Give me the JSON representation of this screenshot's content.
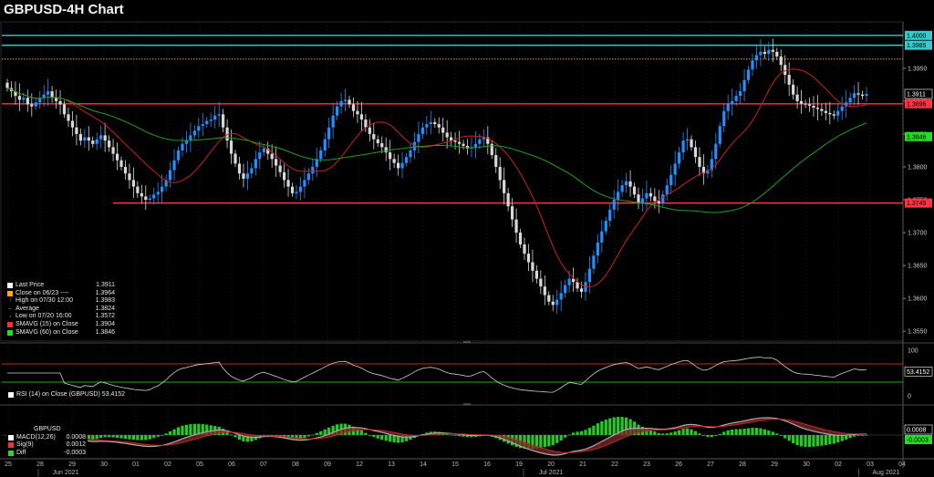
{
  "title": "GBPUSD-4H Chart",
  "colors": {
    "bull": "#1e90ff",
    "bear": "#d8d8d8",
    "sma15": "#cc2020",
    "sma60": "#20a020",
    "cyan": "#33cccc",
    "support": "#ff3344",
    "dotted": "#ccaa33",
    "rsi": "#d0d0d0"
  },
  "chart_data": [
    {
      "type": "candlestick",
      "title": "GBPUSD-4H Chart",
      "y_ticks": [
        "1.3950",
        "1.3900",
        "1.3850",
        "1.3800",
        "1.3750",
        "1.3700",
        "1.3650",
        "1.3600",
        "1.3550"
      ],
      "ylim": [
        1.3535,
        1.4015
      ],
      "x_tick_labels": [
        "25",
        "28",
        "29",
        "30",
        "01",
        "02",
        "05",
        "06",
        "07",
        "08",
        "09",
        "12",
        "13",
        "14",
        "15",
        "16",
        "19",
        "20",
        "21",
        "22",
        "23",
        "26",
        "27",
        "28",
        "29",
        "30",
        "02",
        "03",
        "04"
      ],
      "x_month_labels": [
        "Jun 2021",
        "Jul 2021",
        "Aug 2021"
      ],
      "close_series": [
        1.392,
        1.3915,
        1.3908,
        1.3902,
        1.3905,
        1.3895,
        1.3892,
        1.3898,
        1.3905,
        1.391,
        1.3915,
        1.3905,
        1.39,
        1.3895,
        1.388,
        1.387,
        1.386,
        1.385,
        1.384,
        1.3845,
        1.384,
        1.3835,
        1.3842,
        1.3848,
        1.384,
        1.383,
        1.382,
        1.381,
        1.38,
        1.379,
        1.378,
        1.377,
        1.376,
        1.3755,
        1.375,
        1.3752,
        1.3758,
        1.3762,
        1.377,
        1.378,
        1.3795,
        1.381,
        1.3825,
        1.3835,
        1.384,
        1.3848,
        1.3855,
        1.3862,
        1.3865,
        1.387,
        1.3872,
        1.3878,
        1.388,
        1.386,
        1.384,
        1.382,
        1.3805,
        1.379,
        1.3782,
        1.379,
        1.3798,
        1.3812,
        1.3822,
        1.3828,
        1.382,
        1.3812,
        1.3802,
        1.3792,
        1.378,
        1.377,
        1.376,
        1.3762,
        1.377,
        1.378,
        1.379,
        1.38,
        1.3812,
        1.3825,
        1.3842,
        1.386,
        1.3878,
        1.3892,
        1.39,
        1.3902,
        1.3895,
        1.3885,
        1.388,
        1.3872,
        1.386,
        1.385,
        1.3842,
        1.3836,
        1.383,
        1.3822,
        1.3812,
        1.3806,
        1.3798,
        1.3806,
        1.3815,
        1.3825,
        1.3838,
        1.385,
        1.386,
        1.3865,
        1.3868,
        1.3865,
        1.386,
        1.3852,
        1.3845,
        1.384,
        1.3838,
        1.3835,
        1.3832,
        1.3828,
        1.383,
        1.3835,
        1.3842,
        1.3845,
        1.3835,
        1.3818,
        1.38,
        1.378,
        1.376,
        1.374,
        1.372,
        1.37,
        1.3682,
        1.3668,
        1.3655,
        1.3642,
        1.363,
        1.3618,
        1.3605,
        1.3595,
        1.359,
        1.3598,
        1.3608,
        1.362,
        1.363,
        1.3625,
        1.3615,
        1.361,
        1.3625,
        1.3645,
        1.3665,
        1.3685,
        1.3702,
        1.3718,
        1.3735,
        1.375,
        1.3762,
        1.3772,
        1.3778,
        1.377,
        1.3758,
        1.3745,
        1.3752,
        1.376,
        1.3755,
        1.3748,
        1.3745,
        1.3758,
        1.3772,
        1.3788,
        1.3805,
        1.3822,
        1.384,
        1.3842,
        1.383,
        1.3815,
        1.38,
        1.379,
        1.3795,
        1.3812,
        1.3835,
        1.3862,
        1.3885,
        1.3895,
        1.39,
        1.3908,
        1.3915,
        1.3932,
        1.3948,
        1.3962,
        1.397,
        1.3975,
        1.3972,
        1.3978,
        1.3975,
        1.3968,
        1.3955,
        1.394,
        1.3925,
        1.391,
        1.39,
        1.3896,
        1.3895,
        1.3893,
        1.389,
        1.3888,
        1.3885,
        1.3882,
        1.388,
        1.3878,
        1.3885,
        1.3892,
        1.3898,
        1.3905,
        1.3912,
        1.391,
        1.3908,
        1.3911
      ],
      "lines": [
        {
          "label": "1.4000",
          "value": 1.4,
          "style": "solid",
          "color": "#33cccc"
        },
        {
          "label": "1.3985",
          "value": 1.3985,
          "style": "solid",
          "color": "#33cccc"
        },
        {
          "label": "1.3964",
          "value": 1.3964,
          "style": "dotted",
          "color": "#ccaa33"
        },
        {
          "label": "1.3896",
          "value": 1.3896,
          "style": "solid",
          "color": "#ff3344"
        },
        {
          "label": "1.3745",
          "value": 1.3745,
          "style": "solid",
          "color": "#ff3344"
        }
      ],
      "tag_labels": [
        {
          "label": "1.4000",
          "value": 1.4,
          "bg": "#33cccc",
          "fg": "#000000"
        },
        {
          "label": "1.3985",
          "value": 1.3985,
          "bg": "#33cccc",
          "fg": "#000000"
        },
        {
          "label": "1.3911",
          "value": 1.3911,
          "bg": "#000000",
          "fg": "#ffffff",
          "border": "#ffffff"
        },
        {
          "label": "1.3896",
          "value": 1.3896,
          "bg": "#ff3344",
          "fg": "#000000"
        },
        {
          "label": "1.3846",
          "value": 1.3846,
          "bg": "#22dd22",
          "fg": "#000000"
        },
        {
          "label": "1.3745",
          "value": 1.3745,
          "bg": "#ff3344",
          "fg": "#000000"
        }
      ],
      "legend": [
        {
          "text": "Last Price",
          "value": "1.3911",
          "swatch": "#ffffff",
          "kind": "box"
        },
        {
          "text": "Close on 06/23 ----",
          "value": "1.3964",
          "swatch": "#ffaa00",
          "kind": "box"
        },
        {
          "text": "High on 07/30 12:00",
          "value": "1.3983",
          "swatch": "",
          "kind": "high"
        },
        {
          "text": "Average",
          "value": "1.3824",
          "swatch": "",
          "kind": "avg"
        },
        {
          "text": "Low on 07/20 16:00",
          "value": "1.3572",
          "swatch": "",
          "kind": "low"
        },
        {
          "text": "SMAVG (15)  on Close",
          "value": "1.3904",
          "swatch": "#ee3333",
          "kind": "box"
        },
        {
          "text": "SMAVG (60)  on Close",
          "value": "1.3846",
          "swatch": "#22dd22",
          "kind": "box"
        }
      ]
    },
    {
      "type": "line",
      "title": "RSI (14)  on Close (GBPUSD) 53.4152",
      "y_ticks": [
        "100",
        "50",
        "0"
      ],
      "ylim": [
        0,
        100
      ],
      "levels": [
        70,
        30
      ],
      "last_value": "53.4152",
      "legend_text": "RSI (14)  on Close (GBPUSD) 53.4152"
    },
    {
      "type": "bar",
      "title": "MACD",
      "legend_header": "GBPUSD",
      "legend": [
        {
          "text": "MACD(12,26)",
          "value": "0.0008",
          "swatch": "#ffffff"
        },
        {
          "text": "Sig(9)",
          "value": "0.0012",
          "swatch": "#ee3333"
        },
        {
          "text": "Diff",
          "value": "-0.0003",
          "swatch": "#22dd22"
        }
      ],
      "tag_labels": [
        {
          "label": "0.0008",
          "bg": "#000000",
          "fg": "#ffffff",
          "border": "#ffffff"
        },
        {
          "label": "-0.0003",
          "bg": "#22dd22",
          "fg": "#000000"
        }
      ]
    }
  ]
}
